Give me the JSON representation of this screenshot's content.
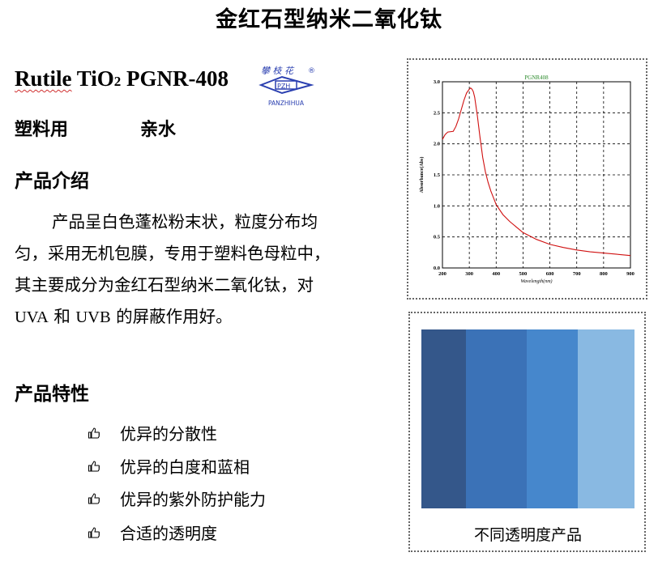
{
  "title": "金红石型纳米二氧化钛",
  "product": {
    "name_prefix": "Rutile",
    "name_mid": "TiO",
    "subscript": "2",
    "code": "PGNR-408"
  },
  "logo": {
    "chars": "攀枝花",
    "initials": "PZH",
    "text": "PANZHIHUA",
    "registered": "®",
    "color": "#2a3fb0"
  },
  "usage": {
    "application": "塑料用",
    "property": "亲水"
  },
  "intro": {
    "heading": "产品介绍",
    "text_1": "产品呈白色蓬松粉末状，粒度分布均匀，采用无机包膜，专用于塑料色母粒中，其主要成分为金红石型纳米二氧化钛，对",
    "uva": "UVA",
    "and": "和",
    "uvb": "UVB",
    "text_2": "的屏蔽作用好。"
  },
  "features": {
    "heading": "产品特性",
    "icon": "thumbs-up-icon",
    "items": [
      "优异的分散性",
      "优异的白度和蓝相",
      "优异的紫外防护能力",
      "合适的透明度"
    ]
  },
  "photo": {
    "caption": "不同透明度产品",
    "stripe_colors": [
      "#34578a",
      "#3b72b7",
      "#4687cc",
      "#89b9e2"
    ]
  },
  "chart_data": {
    "type": "line",
    "title": "PGNR408",
    "xlabel": "Wavelength(nm)",
    "ylabel": "Absorbance(Abs)",
    "xlim": [
      200,
      900
    ],
    "ylim": [
      0,
      3.0
    ],
    "xticks": [
      "200",
      "300",
      "400",
      "500",
      "600",
      "700",
      "800",
      "900"
    ],
    "yticks": [
      "0.0",
      "0.5",
      "1.0",
      "1.5",
      "2.0",
      "2.5",
      "3.0"
    ],
    "grid": true,
    "line_color": "#d01010",
    "title_color": "#2a8a2a",
    "x": [
      200,
      210,
      220,
      240,
      250,
      260,
      270,
      280,
      290,
      300,
      305,
      310,
      315,
      320,
      330,
      340,
      350,
      360,
      370,
      380,
      400,
      425,
      450,
      500,
      550,
      600,
      650,
      700,
      750,
      800,
      850,
      900
    ],
    "y": [
      2.07,
      2.15,
      2.19,
      2.2,
      2.28,
      2.4,
      2.55,
      2.7,
      2.82,
      2.88,
      2.9,
      2.88,
      2.84,
      2.75,
      2.45,
      2.1,
      1.78,
      1.55,
      1.38,
      1.24,
      1.02,
      0.86,
      0.75,
      0.57,
      0.46,
      0.38,
      0.33,
      0.29,
      0.26,
      0.24,
      0.22,
      0.2
    ]
  }
}
